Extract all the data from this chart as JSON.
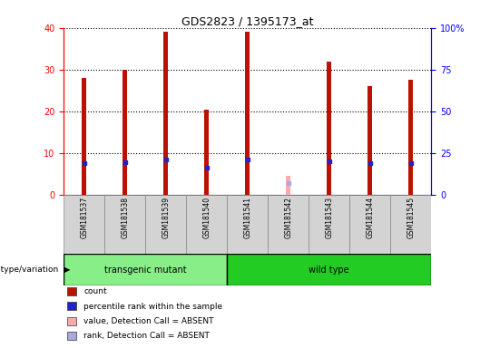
{
  "title": "GDS2823 / 1395173_at",
  "samples": [
    "GSM181537",
    "GSM181538",
    "GSM181539",
    "GSM181540",
    "GSM181541",
    "GSM181542",
    "GSM181543",
    "GSM181544",
    "GSM181545"
  ],
  "count_values": [
    28,
    30,
    39,
    20.5,
    39,
    null,
    32,
    26,
    27.5
  ],
  "rank_values": [
    19,
    19.5,
    21,
    16.5,
    21,
    null,
    20,
    19,
    19
  ],
  "absent_count": [
    null,
    null,
    null,
    null,
    null,
    4.5,
    null,
    null,
    null
  ],
  "absent_rank": [
    null,
    null,
    null,
    null,
    null,
    7,
    null,
    null,
    null
  ],
  "groups": [
    {
      "label": "transgenic mutant",
      "start": 0,
      "end": 4,
      "color": "#88EE88"
    },
    {
      "label": "wild type",
      "start": 4,
      "end": 9,
      "color": "#22CC22"
    }
  ],
  "group_label": "genotype/variation",
  "ylim_left": [
    0,
    40
  ],
  "ylim_right": [
    0,
    100
  ],
  "yticks_left": [
    0,
    10,
    20,
    30,
    40
  ],
  "yticks_right": [
    0,
    25,
    50,
    75,
    100
  ],
  "ytick_labels_right": [
    "0",
    "25",
    "50",
    "75",
    "100%"
  ],
  "bar_width": 0.12,
  "count_color": "#BB1100",
  "rank_color": "#2222CC",
  "absent_count_color": "#FFAAAA",
  "absent_rank_color": "#AAAADD",
  "plot_bg": "#FFFFFF",
  "legend_items": [
    {
      "label": "count",
      "color": "#BB1100"
    },
    {
      "label": "percentile rank within the sample",
      "color": "#2222CC"
    },
    {
      "label": "value, Detection Call = ABSENT",
      "color": "#FFAAAA"
    },
    {
      "label": "rank, Detection Call = ABSENT",
      "color": "#AAAADD"
    }
  ]
}
